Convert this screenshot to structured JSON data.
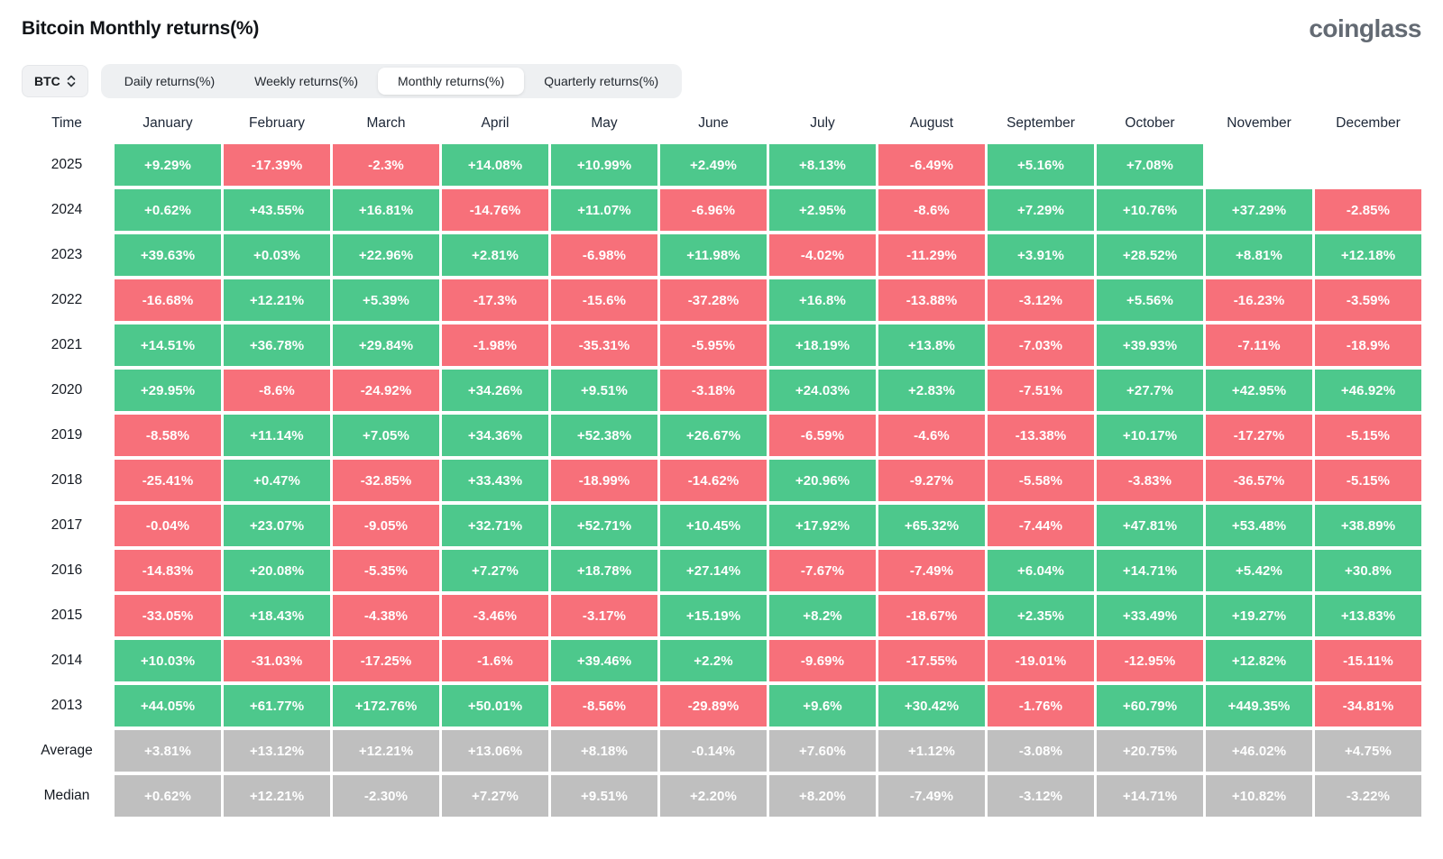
{
  "header": {
    "title": "Bitcoin Monthly returns(%)",
    "logo": "coinglass"
  },
  "controls": {
    "coin": "BTC",
    "tabs": [
      {
        "label": "Daily returns(%)",
        "active": false
      },
      {
        "label": "Weekly returns(%)",
        "active": false
      },
      {
        "label": "Monthly returns(%)",
        "active": true
      },
      {
        "label": "Quarterly returns(%)",
        "active": false
      }
    ]
  },
  "palette": {
    "positive": "#4DC88C",
    "negative": "#F7707A",
    "summary": "#BFBFBF",
    "header_text": "#1D2737"
  },
  "table": {
    "time_header": "Time",
    "months": [
      "January",
      "February",
      "March",
      "April",
      "May",
      "June",
      "July",
      "August",
      "September",
      "October",
      "November",
      "December"
    ],
    "rows": [
      {
        "label": "2025",
        "type": "year",
        "cells": [
          "+9.29%",
          "-17.39%",
          "-2.3%",
          "+14.08%",
          "+10.99%",
          "+2.49%",
          "+8.13%",
          "-6.49%",
          "+5.16%",
          "+7.08%",
          "",
          ""
        ]
      },
      {
        "label": "2024",
        "type": "year",
        "cells": [
          "+0.62%",
          "+43.55%",
          "+16.81%",
          "-14.76%",
          "+11.07%",
          "-6.96%",
          "+2.95%",
          "-8.6%",
          "+7.29%",
          "+10.76%",
          "+37.29%",
          "-2.85%"
        ]
      },
      {
        "label": "2023",
        "type": "year",
        "cells": [
          "+39.63%",
          "+0.03%",
          "+22.96%",
          "+2.81%",
          "-6.98%",
          "+11.98%",
          "-4.02%",
          "-11.29%",
          "+3.91%",
          "+28.52%",
          "+8.81%",
          "+12.18%"
        ]
      },
      {
        "label": "2022",
        "type": "year",
        "cells": [
          "-16.68%",
          "+12.21%",
          "+5.39%",
          "-17.3%",
          "-15.6%",
          "-37.28%",
          "+16.8%",
          "-13.88%",
          "-3.12%",
          "+5.56%",
          "-16.23%",
          "-3.59%"
        ]
      },
      {
        "label": "2021",
        "type": "year",
        "cells": [
          "+14.51%",
          "+36.78%",
          "+29.84%",
          "-1.98%",
          "-35.31%",
          "-5.95%",
          "+18.19%",
          "+13.8%",
          "-7.03%",
          "+39.93%",
          "-7.11%",
          "-18.9%"
        ]
      },
      {
        "label": "2020",
        "type": "year",
        "cells": [
          "+29.95%",
          "-8.6%",
          "-24.92%",
          "+34.26%",
          "+9.51%",
          "-3.18%",
          "+24.03%",
          "+2.83%",
          "-7.51%",
          "+27.7%",
          "+42.95%",
          "+46.92%"
        ]
      },
      {
        "label": "2019",
        "type": "year",
        "cells": [
          "-8.58%",
          "+11.14%",
          "+7.05%",
          "+34.36%",
          "+52.38%",
          "+26.67%",
          "-6.59%",
          "-4.6%",
          "-13.38%",
          "+10.17%",
          "-17.27%",
          "-5.15%"
        ]
      },
      {
        "label": "2018",
        "type": "year",
        "cells": [
          "-25.41%",
          "+0.47%",
          "-32.85%",
          "+33.43%",
          "-18.99%",
          "-14.62%",
          "+20.96%",
          "-9.27%",
          "-5.58%",
          "-3.83%",
          "-36.57%",
          "-5.15%"
        ]
      },
      {
        "label": "2017",
        "type": "year",
        "cells": [
          "-0.04%",
          "+23.07%",
          "-9.05%",
          "+32.71%",
          "+52.71%",
          "+10.45%",
          "+17.92%",
          "+65.32%",
          "-7.44%",
          "+47.81%",
          "+53.48%",
          "+38.89%"
        ]
      },
      {
        "label": "2016",
        "type": "year",
        "cells": [
          "-14.83%",
          "+20.08%",
          "-5.35%",
          "+7.27%",
          "+18.78%",
          "+27.14%",
          "-7.67%",
          "-7.49%",
          "+6.04%",
          "+14.71%",
          "+5.42%",
          "+30.8%"
        ]
      },
      {
        "label": "2015",
        "type": "year",
        "cells": [
          "-33.05%",
          "+18.43%",
          "-4.38%",
          "-3.46%",
          "-3.17%",
          "+15.19%",
          "+8.2%",
          "-18.67%",
          "+2.35%",
          "+33.49%",
          "+19.27%",
          "+13.83%"
        ]
      },
      {
        "label": "2014",
        "type": "year",
        "cells": [
          "+10.03%",
          "-31.03%",
          "-17.25%",
          "-1.6%",
          "+39.46%",
          "+2.2%",
          "-9.69%",
          "-17.55%",
          "-19.01%",
          "-12.95%",
          "+12.82%",
          "-15.11%"
        ]
      },
      {
        "label": "2013",
        "type": "year",
        "cells": [
          "+44.05%",
          "+61.77%",
          "+172.76%",
          "+50.01%",
          "-8.56%",
          "-29.89%",
          "+9.6%",
          "+30.42%",
          "-1.76%",
          "+60.79%",
          "+449.35%",
          "-34.81%"
        ]
      },
      {
        "label": "Average",
        "type": "summary",
        "cells": [
          "+3.81%",
          "+13.12%",
          "+12.21%",
          "+13.06%",
          "+8.18%",
          "-0.14%",
          "+7.60%",
          "+1.12%",
          "-3.08%",
          "+20.75%",
          "+46.02%",
          "+4.75%"
        ]
      },
      {
        "label": "Median",
        "type": "summary",
        "cells": [
          "+0.62%",
          "+12.21%",
          "-2.30%",
          "+7.27%",
          "+9.51%",
          "+2.20%",
          "+8.20%",
          "-7.49%",
          "-3.12%",
          "+14.71%",
          "+10.82%",
          "-3.22%"
        ]
      }
    ]
  },
  "chart_data": {
    "type": "heatmap",
    "title": "Bitcoin Monthly returns(%)",
    "x_categories": [
      "January",
      "February",
      "March",
      "April",
      "May",
      "June",
      "July",
      "August",
      "September",
      "October",
      "November",
      "December"
    ],
    "y_categories": [
      "2025",
      "2024",
      "2023",
      "2022",
      "2021",
      "2020",
      "2019",
      "2018",
      "2017",
      "2016",
      "2015",
      "2014",
      "2013",
      "Average",
      "Median"
    ],
    "unit": "%",
    "color_rule": "positive=green, negative=red, summary rows=gray",
    "series": [
      {
        "name": "2025",
        "values": [
          9.29,
          -17.39,
          -2.3,
          14.08,
          10.99,
          2.49,
          8.13,
          -6.49,
          5.16,
          7.08,
          null,
          null
        ]
      },
      {
        "name": "2024",
        "values": [
          0.62,
          43.55,
          16.81,
          -14.76,
          11.07,
          -6.96,
          2.95,
          -8.6,
          7.29,
          10.76,
          37.29,
          -2.85
        ]
      },
      {
        "name": "2023",
        "values": [
          39.63,
          0.03,
          22.96,
          2.81,
          -6.98,
          11.98,
          -4.02,
          -11.29,
          3.91,
          28.52,
          8.81,
          12.18
        ]
      },
      {
        "name": "2022",
        "values": [
          -16.68,
          12.21,
          5.39,
          -17.3,
          -15.6,
          -37.28,
          16.8,
          -13.88,
          -3.12,
          5.56,
          -16.23,
          -3.59
        ]
      },
      {
        "name": "2021",
        "values": [
          14.51,
          36.78,
          29.84,
          -1.98,
          -35.31,
          -5.95,
          18.19,
          13.8,
          -7.03,
          39.93,
          -7.11,
          -18.9
        ]
      },
      {
        "name": "2020",
        "values": [
          29.95,
          -8.6,
          -24.92,
          34.26,
          9.51,
          -3.18,
          24.03,
          2.83,
          -7.51,
          27.7,
          42.95,
          46.92
        ]
      },
      {
        "name": "2019",
        "values": [
          -8.58,
          11.14,
          7.05,
          34.36,
          52.38,
          26.67,
          -6.59,
          -4.6,
          -13.38,
          10.17,
          -17.27,
          -5.15
        ]
      },
      {
        "name": "2018",
        "values": [
          -25.41,
          0.47,
          -32.85,
          33.43,
          -18.99,
          -14.62,
          20.96,
          -9.27,
          -5.58,
          -3.83,
          -36.57,
          -5.15
        ]
      },
      {
        "name": "2017",
        "values": [
          -0.04,
          23.07,
          -9.05,
          32.71,
          52.71,
          10.45,
          17.92,
          65.32,
          -7.44,
          47.81,
          53.48,
          38.89
        ]
      },
      {
        "name": "2016",
        "values": [
          -14.83,
          20.08,
          -5.35,
          7.27,
          18.78,
          27.14,
          -7.67,
          -7.49,
          6.04,
          14.71,
          5.42,
          30.8
        ]
      },
      {
        "name": "2015",
        "values": [
          -33.05,
          18.43,
          -4.38,
          -3.46,
          -3.17,
          15.19,
          8.2,
          -18.67,
          2.35,
          33.49,
          19.27,
          13.83
        ]
      },
      {
        "name": "2014",
        "values": [
          10.03,
          -31.03,
          -17.25,
          -1.6,
          39.46,
          2.2,
          -9.69,
          -17.55,
          -19.01,
          -12.95,
          12.82,
          -15.11
        ]
      },
      {
        "name": "2013",
        "values": [
          44.05,
          61.77,
          172.76,
          50.01,
          -8.56,
          -29.89,
          9.6,
          30.42,
          -1.76,
          60.79,
          449.35,
          -34.81
        ]
      },
      {
        "name": "Average",
        "values": [
          3.81,
          13.12,
          12.21,
          13.06,
          8.18,
          -0.14,
          7.6,
          1.12,
          -3.08,
          20.75,
          46.02,
          4.75
        ]
      },
      {
        "name": "Median",
        "values": [
          0.62,
          12.21,
          -2.3,
          7.27,
          9.51,
          2.2,
          8.2,
          -7.49,
          -3.12,
          14.71,
          10.82,
          -3.22
        ]
      }
    ]
  }
}
